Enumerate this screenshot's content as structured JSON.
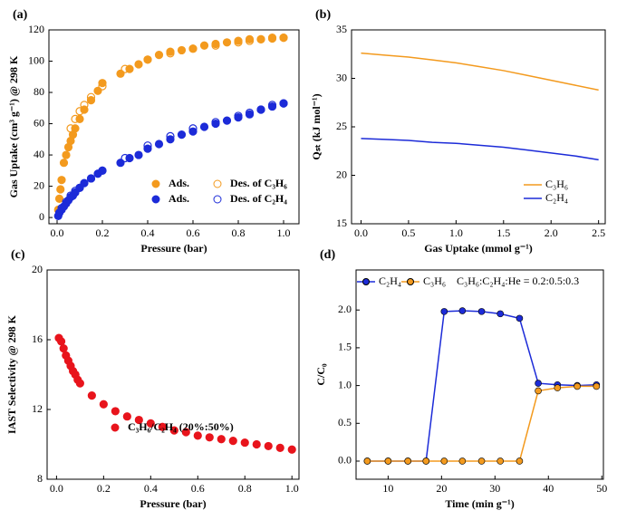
{
  "chart_data": [
    {
      "type": "scatter",
      "label": "(a)",
      "x_label": "Pressure (bar)",
      "y_label": "Gas Uptake (cm³ g⁻¹) @ 298 K",
      "xlim": [
        -0.036,
        1.068
      ],
      "ylim": [
        -4,
        120
      ],
      "xticks": [
        {
          "value": 0,
          "label": "0.0"
        },
        0.2,
        0.4,
        0.6,
        0.8,
        {
          "value": 1,
          "label": "1.0"
        }
      ],
      "yticks": [
        0,
        20,
        40,
        60,
        80,
        100,
        120
      ],
      "series": [
        {
          "name": "Ads.",
          "color": "#f39a1e",
          "filled": true,
          "x": [
            0.005,
            0.01,
            0.015,
            0.02,
            0.03,
            0.04,
            0.05,
            0.06,
            0.07,
            0.08,
            0.1,
            0.12,
            0.15,
            0.18,
            0.2,
            0.28,
            0.32,
            0.36,
            0.4,
            0.45,
            0.5,
            0.55,
            0.6,
            0.65,
            0.7,
            0.75,
            0.8,
            0.85,
            0.9,
            0.95,
            1.0
          ],
          "values": [
            5,
            12,
            18,
            24,
            35,
            40,
            45,
            49,
            53,
            57,
            63,
            69,
            75,
            81,
            86,
            92,
            95,
            98,
            101,
            104,
            106,
            107,
            108,
            110,
            111,
            112,
            113,
            114,
            114,
            115,
            115
          ]
        },
        {
          "name": "Des. of C₃H₆",
          "color": "#f39a1e",
          "filled": false,
          "x": [
            1.0,
            0.95,
            0.9,
            0.85,
            0.8,
            0.7,
            0.6,
            0.5,
            0.4,
            0.3,
            0.2,
            0.15,
            0.12,
            0.1,
            0.08,
            0.06
          ],
          "values": [
            115,
            114.5,
            114,
            113,
            112,
            110,
            108,
            105,
            101,
            95,
            84,
            77,
            72,
            68,
            63,
            57
          ]
        },
        {
          "name": "Ads.",
          "color": "#1c2bd8",
          "filled": true,
          "x": [
            0.005,
            0.01,
            0.02,
            0.03,
            0.04,
            0.05,
            0.06,
            0.07,
            0.08,
            0.1,
            0.12,
            0.15,
            0.18,
            0.2,
            0.28,
            0.32,
            0.36,
            0.4,
            0.45,
            0.5,
            0.55,
            0.6,
            0.65,
            0.7,
            0.75,
            0.8,
            0.85,
            0.9,
            0.95,
            1.0
          ],
          "values": [
            1,
            3,
            5,
            7,
            9,
            11,
            13,
            14,
            16,
            19,
            22,
            25,
            28,
            30,
            35,
            38,
            40,
            44,
            47,
            50,
            53,
            55,
            58,
            60,
            62,
            64,
            66,
            69,
            71,
            73
          ]
        },
        {
          "name": "Des. of C₂H₄",
          "color": "#1c2bd8",
          "filled": false,
          "x": [
            1.0,
            0.95,
            0.9,
            0.85,
            0.8,
            0.7,
            0.6,
            0.5,
            0.4,
            0.3,
            0.2,
            0.15,
            0.1,
            0.08,
            0.06,
            0.04,
            0.02,
            0.01
          ],
          "values": [
            73,
            72,
            69,
            67,
            65,
            61,
            57,
            52,
            46,
            38,
            30,
            25,
            19,
            17,
            14,
            10,
            6,
            3
          ]
        }
      ]
    },
    {
      "type": "line",
      "label": "(b)",
      "x_label": "Gas Uptake (mmol g⁻¹)",
      "y_label": "Qₛₜ (kJ mol⁻¹)",
      "xlim": [
        -0.1,
        2.57
      ],
      "ylim": [
        15,
        35
      ],
      "xticks": [
        {
          "value": 0,
          "label": "0.0"
        },
        0.5,
        {
          "value": 1,
          "label": "1.0"
        },
        1.5,
        {
          "value": 2,
          "label": "2.0"
        },
        2.5
      ],
      "yticks": [
        15,
        20,
        25,
        30,
        35
      ],
      "series": [
        {
          "name": "C₃H₆",
          "color": "#f39a1e",
          "x": [
            0,
            0.25,
            0.5,
            0.75,
            1,
            1.25,
            1.5,
            1.75,
            2,
            2.25,
            2.5
          ],
          "values": [
            32.6,
            32.4,
            32.2,
            31.9,
            31.6,
            31.2,
            30.8,
            30.3,
            29.8,
            29.3,
            28.8
          ]
        },
        {
          "name": "C₂H₄",
          "color": "#1c2bd8",
          "x": [
            0,
            0.25,
            0.5,
            0.75,
            1,
            1.25,
            1.5,
            1.75,
            2,
            2.25,
            2.5
          ],
          "values": [
            23.8,
            23.7,
            23.6,
            23.4,
            23.3,
            23.1,
            22.9,
            22.6,
            22.3,
            22.0,
            21.6
          ]
        }
      ]
    },
    {
      "type": "scatter",
      "label": "(c)",
      "x_label": "Pressure (bar)",
      "y_label": "IAST Selectivity @ 298 K",
      "xlim": [
        -0.04,
        1.03
      ],
      "ylim": [
        8,
        20
      ],
      "xticks": [
        {
          "value": 0,
          "label": "0.0"
        },
        0.2,
        0.4,
        0.6,
        0.8,
        {
          "value": 1,
          "label": "1.0"
        }
      ],
      "yticks": [
        8,
        12,
        16,
        20
      ],
      "series": [
        {
          "name": "C₃H₆/C₂H₄ (20%:50%)",
          "color": "#e8141c",
          "filled": true,
          "x": [
            0.01,
            0.02,
            0.03,
            0.04,
            0.05,
            0.06,
            0.07,
            0.08,
            0.09,
            0.1,
            0.15,
            0.2,
            0.25,
            0.3,
            0.35,
            0.4,
            0.45,
            0.5,
            0.55,
            0.6,
            0.65,
            0.7,
            0.75,
            0.8,
            0.85,
            0.9,
            0.95,
            1.0
          ],
          "values": [
            16.1,
            15.9,
            15.5,
            15.1,
            14.8,
            14.5,
            14.2,
            14.0,
            13.7,
            13.5,
            12.8,
            12.3,
            11.9,
            11.6,
            11.4,
            11.2,
            11.0,
            10.8,
            10.7,
            10.5,
            10.4,
            10.3,
            10.2,
            10.1,
            10.0,
            9.9,
            9.8,
            9.7
          ]
        }
      ]
    },
    {
      "type": "line",
      "label": "(d)",
      "markers": true,
      "x_label": "Time (min g⁻¹)",
      "y_label": "C/C₀",
      "annotation": "C₃H₆:C₂H₄:He = 0.2:0.5:0.3",
      "xlim": [
        4,
        50.3
      ],
      "ylim": [
        -0.24,
        2.53
      ],
      "xticks": [
        10,
        20,
        30,
        40,
        50
      ],
      "yticks": [
        {
          "value": 0,
          "label": "0.0"
        },
        0.5,
        {
          "value": 1,
          "label": "1.0"
        },
        1.5,
        {
          "value": 2,
          "label": "2.0"
        }
      ],
      "series": [
        {
          "name": "C₂H₄",
          "color": "#1c2bd8",
          "x": [
            6.1,
            10,
            13.7,
            17.1,
            20.5,
            23.9,
            27.5,
            31,
            34.6,
            38.1,
            41.7,
            45.4,
            49
          ],
          "values": [
            0,
            0,
            0,
            0,
            1.98,
            1.99,
            1.98,
            1.95,
            1.89,
            1.03,
            1.01,
            1.0,
            1.01
          ]
        },
        {
          "name": "C₃H₆",
          "color": "#f39a1e",
          "x": [
            6.1,
            10,
            13.7,
            17.1,
            20.5,
            23.9,
            27.5,
            31,
            34.6,
            38.1,
            41.7,
            45.4,
            49
          ],
          "values": [
            0,
            0,
            0,
            0,
            0,
            0,
            0,
            0,
            0,
            0.93,
            0.97,
            0.99,
            0.99
          ]
        }
      ]
    }
  ]
}
